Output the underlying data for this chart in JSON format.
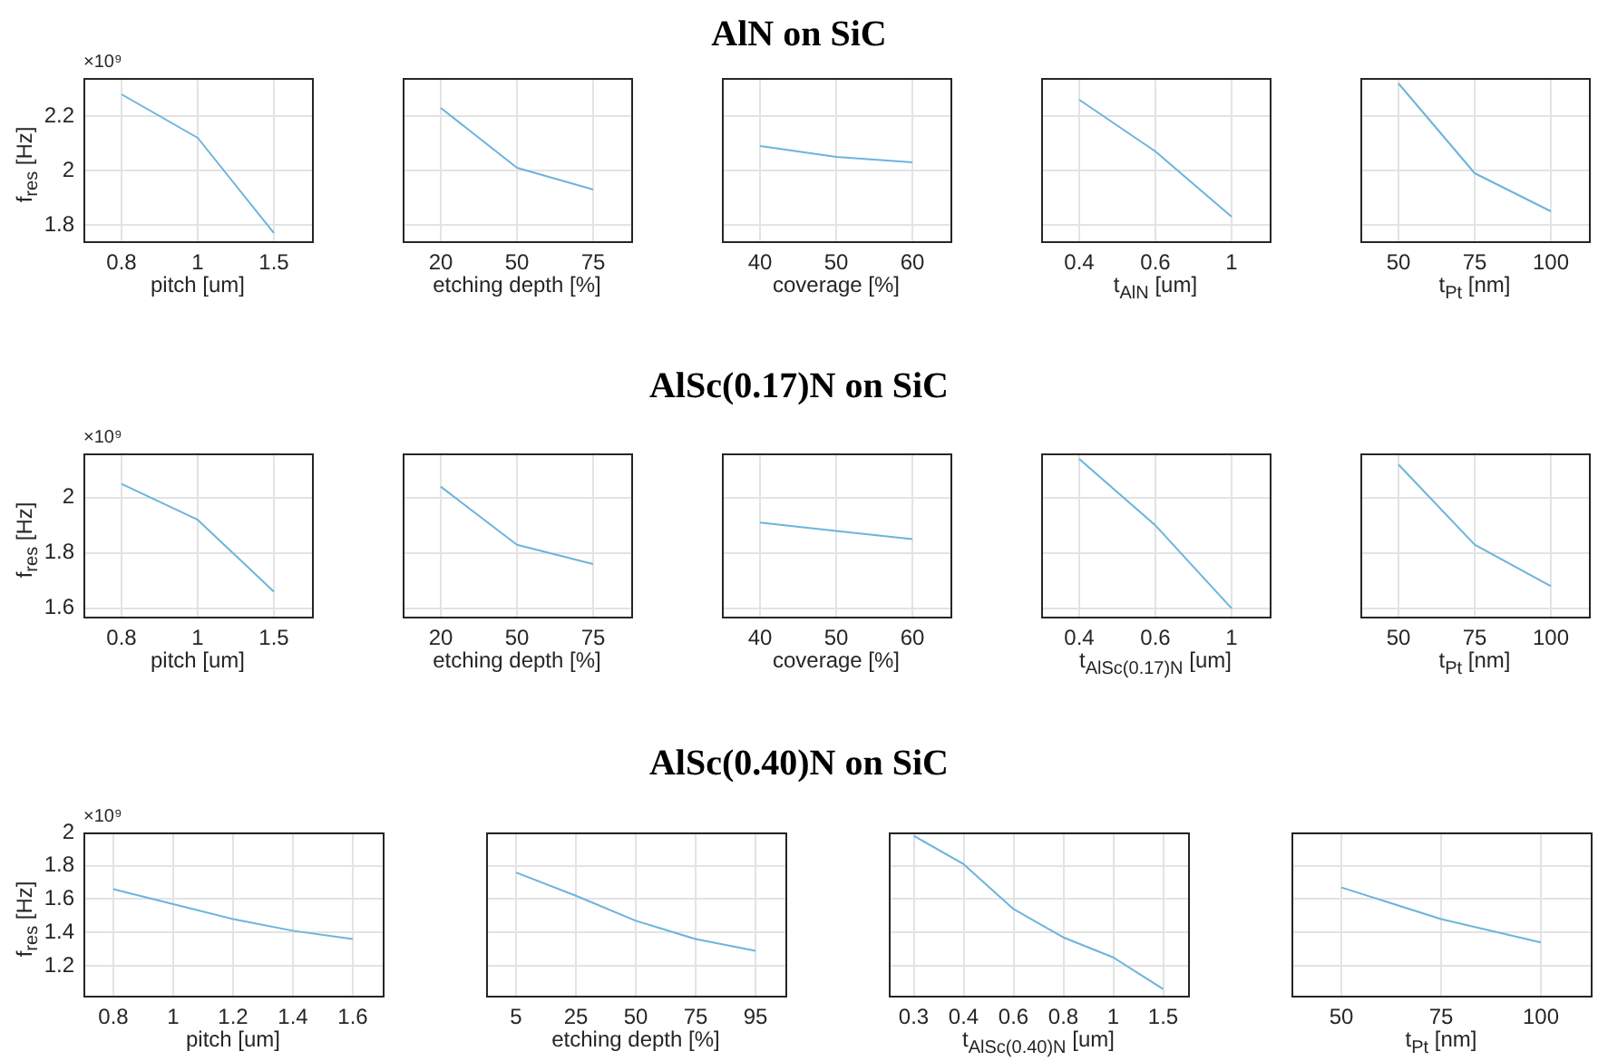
{
  "chart_data": [
    {
      "type": "line",
      "categories": [
        "0.8",
        "1",
        "1.5"
      ],
      "values": [
        2.28,
        2.12,
        1.77
      ],
      "color": "#6cb4dc",
      "ylim": [
        1.74,
        2.34
      ],
      "yticks": [
        1.8,
        2,
        2.2
      ],
      "xlabel": "pitch [um]",
      "ylabel": "f$_{res}$ [Hz]",
      "annotations": [
        "×10⁹"
      ],
      "grid": true
    },
    {
      "type": "line",
      "categories": [
        "20",
        "50",
        "75"
      ],
      "values": [
        2.23,
        2.01,
        1.93
      ],
      "color": "#6cb4dc",
      "ylim": [
        1.74,
        2.34
      ],
      "yticks": [
        1.8,
        2,
        2.2
      ],
      "xlabel": "etching depth [%]",
      "tick_labels": "x",
      "grid": true
    },
    {
      "type": "line",
      "title": "AlN on SiC",
      "categories": [
        "40",
        "50",
        "60"
      ],
      "values": [
        2.09,
        2.05,
        2.03
      ],
      "color": "#6cb4dc",
      "ylim": [
        1.74,
        2.34
      ],
      "yticks": [
        1.8,
        2,
        2.2
      ],
      "xlabel": "coverage [%]",
      "tick_labels": "x",
      "grid": true
    },
    {
      "type": "line",
      "categories": [
        "0.4",
        "0.6",
        "1"
      ],
      "values": [
        2.26,
        2.07,
        1.83
      ],
      "color": "#6cb4dc",
      "ylim": [
        1.74,
        2.34
      ],
      "yticks": [
        1.8,
        2,
        2.2
      ],
      "xlabel": "t$_{AlN}$ [um]",
      "tick_labels": "x",
      "grid": true
    },
    {
      "type": "line",
      "categories": [
        "50",
        "75",
        "100"
      ],
      "values": [
        2.32,
        1.99,
        1.85
      ],
      "color": "#6cb4dc",
      "ylim": [
        1.74,
        2.34
      ],
      "yticks": [
        1.8,
        2,
        2.2
      ],
      "xlabel": "t$_{Pt}$ [nm]",
      "tick_labels": "x",
      "grid": true
    },
    {
      "type": "line",
      "categories": [
        "0.8",
        "1",
        "1.5"
      ],
      "values": [
        2.05,
        1.92,
        1.66
      ],
      "color": "#6cb4dc",
      "ylim": [
        1.57,
        2.16
      ],
      "yticks": [
        1.6,
        1.8,
        2
      ],
      "xlabel": "pitch [um]",
      "ylabel": "f$_{res}$ [Hz]",
      "annotations": [
        "×10⁹"
      ],
      "grid": true
    },
    {
      "type": "line",
      "categories": [
        "20",
        "50",
        "75"
      ],
      "values": [
        2.04,
        1.83,
        1.76
      ],
      "color": "#6cb4dc",
      "ylim": [
        1.57,
        2.16
      ],
      "yticks": [
        1.6,
        1.8,
        2
      ],
      "xlabel": "etching depth [%]",
      "tick_labels": "x",
      "grid": true
    },
    {
      "type": "line",
      "title": "AlSc(0.17)N on SiC",
      "categories": [
        "40",
        "50",
        "60"
      ],
      "values": [
        1.91,
        1.88,
        1.85
      ],
      "color": "#6cb4dc",
      "ylim": [
        1.57,
        2.16
      ],
      "yticks": [
        1.6,
        1.8,
        2
      ],
      "xlabel": "coverage [%]",
      "tick_labels": "x",
      "grid": true
    },
    {
      "type": "line",
      "categories": [
        "0.4",
        "0.6",
        "1"
      ],
      "values": [
        2.14,
        1.9,
        1.6
      ],
      "color": "#6cb4dc",
      "ylim": [
        1.57,
        2.16
      ],
      "yticks": [
        1.6,
        1.8,
        2
      ],
      "xlabel": "t$_{AlSc(0.17)N}$ [um]",
      "tick_labels": "x",
      "grid": true
    },
    {
      "type": "line",
      "categories": [
        "50",
        "75",
        "100"
      ],
      "values": [
        2.12,
        1.83,
        1.68
      ],
      "color": "#6cb4dc",
      "ylim": [
        1.57,
        2.16
      ],
      "yticks": [
        1.6,
        1.8,
        2
      ],
      "xlabel": "t$_{Pt}$ [nm]",
      "tick_labels": "x",
      "grid": true
    },
    {
      "type": "line",
      "x": [
        0.8,
        1,
        1.2,
        1.4,
        1.6
      ],
      "values": [
        1.66,
        1.57,
        1.48,
        1.41,
        1.36
      ],
      "color": "#6cb4dc",
      "xlim": [
        0.7,
        1.7
      ],
      "xticks": [
        0.8,
        1,
        1.2,
        1.4,
        1.6
      ],
      "ylim": [
        1.02,
        2
      ],
      "yticks": [
        1.2,
        1.4,
        1.6,
        1.8,
        2
      ],
      "xlabel": "pitch [um]",
      "ylabel": "f$_{res}$ [Hz]",
      "annotations": [
        "×10⁹"
      ],
      "grid": true
    },
    {
      "type": "line",
      "title": "AlSc(0.40)N on SiC",
      "categories": [
        "5",
        "25",
        "50",
        "75",
        "95"
      ],
      "values": [
        1.76,
        1.62,
        1.47,
        1.36,
        1.29
      ],
      "color": "#6cb4dc",
      "ylim": [
        1.02,
        2
      ],
      "yticks": [
        1.2,
        1.4,
        1.6,
        1.8,
        2
      ],
      "xlabel": "etching depth [%]",
      "tick_labels": "x",
      "grid": true
    },
    {
      "type": "line",
      "categories": [
        "0.3",
        "0.4",
        "0.6",
        "0.8",
        "1",
        "1.5"
      ],
      "values": [
        1.98,
        1.81,
        1.54,
        1.37,
        1.25,
        1.06
      ],
      "color": "#6cb4dc",
      "ylim": [
        1.02,
        2
      ],
      "yticks": [
        1.2,
        1.4,
        1.6,
        1.8,
        2
      ],
      "xlabel": "t$_{AlSc(0.40)N}$ [um]",
      "tick_labels": "x",
      "grid": true
    },
    {
      "type": "line",
      "categories": [
        "50",
        "75",
        "100"
      ],
      "values": [
        1.67,
        1.48,
        1.34
      ],
      "color": "#6cb4dc",
      "ylim": [
        1.02,
        2
      ],
      "yticks": [
        1.2,
        1.4,
        1.6,
        1.8,
        2
      ],
      "xlabel": "t$_{Pt}$ [nm]",
      "tick_labels": "x",
      "grid": true
    }
  ]
}
